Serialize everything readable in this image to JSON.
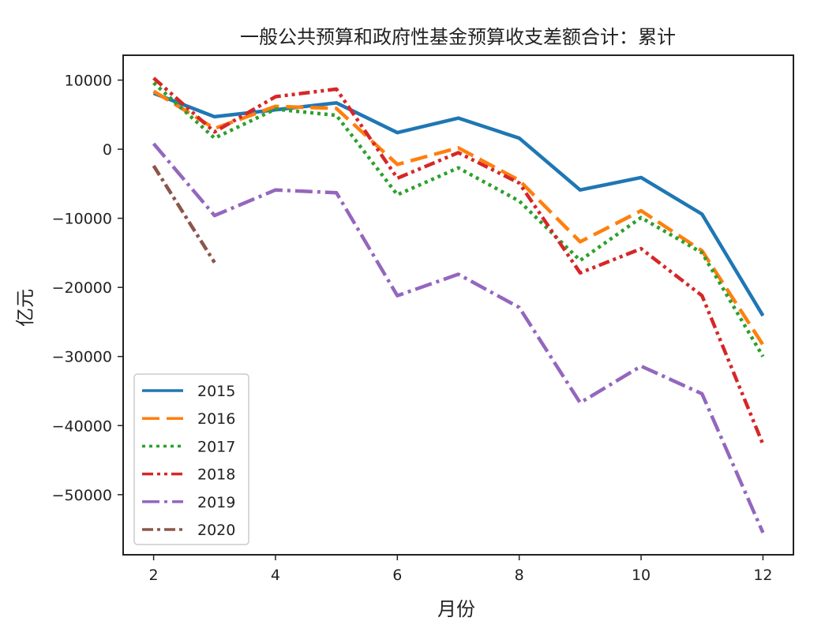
{
  "chart_data": {
    "type": "line",
    "title": "一般公共预算和政府性基金预算收支差额合计：累计",
    "xlabel": "月份",
    "ylabel": "亿元",
    "xlim": [
      1.5,
      12.5
    ],
    "ylim": [
      -58700,
      13600
    ],
    "xticks": [
      2,
      4,
      6,
      8,
      10,
      12
    ],
    "yticks": [
      10000,
      0,
      -10000,
      -20000,
      -30000,
      -40000,
      -50000
    ],
    "grid": false,
    "legend_position": "lower-left",
    "series": [
      {
        "name": "2015",
        "color": "#1f77b4",
        "style": "solid",
        "x": [
          2,
          3,
          4,
          5,
          6,
          7,
          8,
          9,
          10,
          11,
          12
        ],
        "values": [
          8100,
          4700,
          5700,
          6700,
          2400,
          4500,
          1600,
          -5900,
          -4100,
          -9400,
          -24100
        ]
      },
      {
        "name": "2016",
        "color": "#ff7f0e",
        "style": "dashed",
        "x": [
          2,
          3,
          4,
          5,
          6,
          7,
          8,
          9,
          10,
          11,
          12
        ],
        "values": [
          8400,
          3000,
          6200,
          5900,
          -2200,
          200,
          -4500,
          -13400,
          -8900,
          -14700,
          -28300
        ]
      },
      {
        "name": "2017",
        "color": "#2ca02c",
        "style": "dotted",
        "x": [
          2,
          3,
          4,
          5,
          6,
          7,
          8,
          9,
          10,
          11,
          12
        ],
        "values": [
          9600,
          1600,
          5800,
          4900,
          -6600,
          -2700,
          -7500,
          -16100,
          -9900,
          -15000,
          -30000
        ]
      },
      {
        "name": "2018",
        "color": "#d62728",
        "style": "dashdotdot",
        "x": [
          2,
          3,
          4,
          5,
          6,
          7,
          8,
          9,
          10,
          11,
          12
        ],
        "values": [
          10300,
          2500,
          7600,
          8700,
          -4200,
          -500,
          -4900,
          -17900,
          -14400,
          -21200,
          -42700
        ]
      },
      {
        "name": "2019",
        "color": "#9467bd",
        "style": "dashdot",
        "x": [
          2,
          3,
          4,
          5,
          6,
          7,
          8,
          9,
          10,
          11,
          12
        ],
        "values": [
          800,
          -9600,
          -5900,
          -6300,
          -21200,
          -18100,
          -22900,
          -36700,
          -31400,
          -35400,
          -55500
        ]
      },
      {
        "name": "2020",
        "color": "#8c564b",
        "style": "dashdot2",
        "x": [
          2,
          3
        ],
        "values": [
          -2400,
          -16400
        ]
      }
    ]
  }
}
